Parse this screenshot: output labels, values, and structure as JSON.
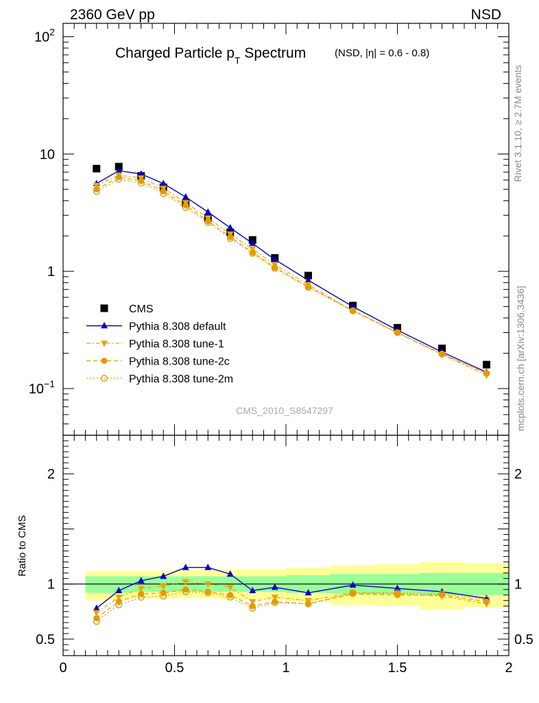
{
  "header": {
    "energy_label": "2360 GeV pp",
    "process_label": "NSD"
  },
  "side_labels": {
    "rivet": "Rivet 3.1.10, ≥ 2.7M events",
    "mcplots": "mcplots.cern.ch [arXiv:1306.3436]"
  },
  "analysis_id": "CMS_2010_S8547297",
  "chart_data": [
    {
      "type": "scatter",
      "panel": "main",
      "title": "Charged Particle pT Spectrum",
      "title_main": "Charged Particle p",
      "title_sub": "T",
      "title_tail": " Spectrum",
      "subtitle": "(NSD, |η| = 0.6 - 0.8)",
      "xlabel": "",
      "ylabel": "",
      "yscale": "log",
      "xlim": [
        0,
        2
      ],
      "ylim": [
        0.04,
        130
      ],
      "yticks": [
        {
          "v": 100,
          "base": "10",
          "exp": "2"
        },
        {
          "v": 10,
          "base": "10",
          "exp": ""
        },
        {
          "v": 1,
          "base": "1",
          "exp": ""
        },
        {
          "v": 0.1,
          "base": "10",
          "exp": "−1"
        }
      ],
      "legend_position": "left",
      "x": [
        0.15,
        0.25,
        0.35,
        0.45,
        0.55,
        0.65,
        0.75,
        0.85,
        0.95,
        1.1,
        1.3,
        1.5,
        1.7,
        1.9
      ],
      "series": [
        {
          "name": "CMS",
          "color": "#000000",
          "marker": "square",
          "line": "none",
          "values": [
            7.5,
            7.8,
            6.5,
            5.2,
            3.8,
            2.85,
            2.15,
            1.85,
            1.3,
            0.92,
            0.51,
            0.33,
            0.22,
            0.16
          ]
        },
        {
          "name": "Pythia 8.308 default",
          "color": "#0000cc",
          "marker": "triangle-up",
          "line": "solid",
          "values": [
            5.6,
            7.2,
            6.75,
            5.6,
            4.3,
            3.2,
            2.35,
            1.73,
            1.26,
            0.84,
            0.5,
            0.315,
            0.205,
            0.138
          ]
        },
        {
          "name": "Pythia 8.308 tune-1",
          "color": "#e6a800",
          "marker": "triangle-down",
          "line": "dashdot",
          "values": [
            5.4,
            6.6,
            6.25,
            5.1,
            3.85,
            2.85,
            2.08,
            1.55,
            1.14,
            0.77,
            0.46,
            0.3,
            0.195,
            0.13
          ]
        },
        {
          "name": "Pythia 8.308 tune-2c",
          "color": "#e69a00",
          "marker": "circle",
          "line": "dashed",
          "values": [
            5.0,
            6.35,
            5.9,
            4.8,
            3.65,
            2.68,
            1.96,
            1.45,
            1.08,
            0.74,
            0.465,
            0.3,
            0.198,
            0.135
          ]
        },
        {
          "name": "Pythia 8.308 tune-2m",
          "color": "#e69a00",
          "marker": "circle-open",
          "line": "dotted",
          "values": [
            4.8,
            6.1,
            5.65,
            4.6,
            3.5,
            2.6,
            1.9,
            1.42,
            1.06,
            0.73,
            0.46,
            0.3,
            0.197,
            0.135
          ]
        }
      ]
    },
    {
      "type": "line",
      "panel": "ratio",
      "title": "",
      "xlabel": "",
      "ylabel": "Ratio to CMS",
      "xlim": [
        0,
        2
      ],
      "ylim": [
        0.35,
        2.35
      ],
      "xticks": [
        "0",
        "0.5",
        "1",
        "1.5",
        "2"
      ],
      "yticks": [
        "0.5",
        "1",
        "2"
      ],
      "reference_line": 1,
      "bands": [
        {
          "x_from": 0.1,
          "x_to": 0.2,
          "inner": [
            0.92,
            1.07
          ],
          "outer": [
            0.85,
            1.12
          ]
        },
        {
          "x_from": 0.2,
          "x_to": 0.3,
          "inner": [
            0.92,
            1.07
          ],
          "outer": [
            0.86,
            1.12
          ]
        },
        {
          "x_from": 0.3,
          "x_to": 0.4,
          "inner": [
            0.93,
            1.07
          ],
          "outer": [
            0.87,
            1.12
          ]
        },
        {
          "x_from": 0.4,
          "x_to": 0.5,
          "inner": [
            0.93,
            1.07
          ],
          "outer": [
            0.87,
            1.12
          ]
        },
        {
          "x_from": 0.5,
          "x_to": 0.6,
          "inner": [
            0.93,
            1.07
          ],
          "outer": [
            0.87,
            1.13
          ]
        },
        {
          "x_from": 0.6,
          "x_to": 0.7,
          "inner": [
            0.93,
            1.07
          ],
          "outer": [
            0.87,
            1.13
          ]
        },
        {
          "x_from": 0.7,
          "x_to": 0.8,
          "inner": [
            0.93,
            1.07
          ],
          "outer": [
            0.86,
            1.13
          ]
        },
        {
          "x_from": 0.8,
          "x_to": 0.9,
          "inner": [
            0.93,
            1.07
          ],
          "outer": [
            0.86,
            1.13
          ]
        },
        {
          "x_from": 0.9,
          "x_to": 1.0,
          "inner": [
            0.93,
            1.07
          ],
          "outer": [
            0.86,
            1.13
          ]
        },
        {
          "x_from": 1.0,
          "x_to": 1.2,
          "inner": [
            0.92,
            1.08
          ],
          "outer": [
            0.84,
            1.15
          ]
        },
        {
          "x_from": 1.2,
          "x_to": 1.4,
          "inner": [
            0.91,
            1.09
          ],
          "outer": [
            0.81,
            1.17
          ]
        },
        {
          "x_from": 1.4,
          "x_to": 1.6,
          "inner": [
            0.91,
            1.09
          ],
          "outer": [
            0.8,
            1.18
          ]
        },
        {
          "x_from": 1.6,
          "x_to": 1.8,
          "inner": [
            0.9,
            1.1
          ],
          "outer": [
            0.77,
            1.2
          ]
        },
        {
          "x_from": 1.8,
          "x_to": 2.0,
          "inner": [
            0.9,
            1.1
          ],
          "outer": [
            0.79,
            1.19
          ]
        }
      ],
      "band_colors": {
        "inner": "#99ff99",
        "outer": "#ffff99"
      },
      "x": [
        0.15,
        0.25,
        0.35,
        0.45,
        0.55,
        0.65,
        0.75,
        0.85,
        0.95,
        1.1,
        1.3,
        1.5,
        1.7,
        1.9
      ],
      "series": [
        {
          "name": "Pythia 8.308 default",
          "color": "#0000cc",
          "marker": "triangle-up",
          "line": "solid",
          "values": [
            0.78,
            0.94,
            1.03,
            1.07,
            1.15,
            1.15,
            1.09,
            0.94,
            0.97,
            0.92,
            0.99,
            0.96,
            0.93,
            0.87
          ]
        },
        {
          "name": "Pythia 8.308 tune-1",
          "color": "#e6a800",
          "marker": "triangle-down",
          "line": "dashdot",
          "values": [
            0.74,
            0.88,
            0.96,
            0.98,
            1.02,
            1.0,
            0.97,
            0.84,
            0.88,
            0.85,
            0.92,
            0.91,
            0.89,
            0.82
          ]
        },
        {
          "name": "Pythia 8.308 tune-2c",
          "color": "#e69a00",
          "marker": "circle",
          "line": "dashed",
          "values": [
            0.69,
            0.84,
            0.91,
            0.92,
            0.95,
            0.93,
            0.9,
            0.8,
            0.84,
            0.82,
            0.91,
            0.9,
            0.9,
            0.84
          ]
        },
        {
          "name": "Pythia 8.308 tune-2m",
          "color": "#e69a00",
          "marker": "circle-open",
          "line": "dotted",
          "values": [
            0.66,
            0.81,
            0.88,
            0.89,
            0.93,
            0.92,
            0.88,
            0.78,
            0.83,
            0.82,
            0.92,
            0.92,
            0.91,
            0.86
          ]
        }
      ]
    }
  ]
}
